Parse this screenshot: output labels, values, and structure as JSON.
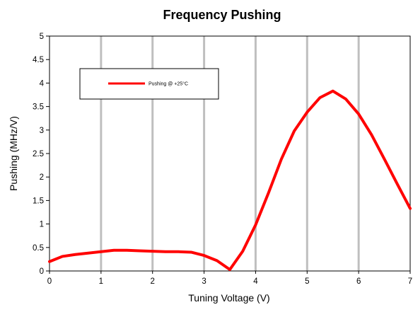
{
  "chart_data": {
    "type": "line",
    "title": "Frequency Pushing",
    "xlabel": "Tuning Voltage (V)",
    "ylabel": "Pushing (MHz/V)",
    "xlim": [
      0,
      7
    ],
    "ylim": [
      0,
      5
    ],
    "x_ticks": [
      "0",
      "1",
      "2",
      "3",
      "4",
      "5",
      "6",
      "7"
    ],
    "y_ticks": [
      "0",
      "0.5",
      "1",
      "1.5",
      "2",
      "2.5",
      "3",
      "3.5",
      "4",
      "4.5",
      "5"
    ],
    "grid": {
      "vertical": true,
      "horizontal": false
    },
    "legend_position": "top-left",
    "series": [
      {
        "name": "Pushing @ +25°C",
        "color": "#ff0000",
        "x": [
          0,
          0.25,
          0.5,
          0.75,
          1,
          1.25,
          1.5,
          1.75,
          2,
          2.25,
          2.5,
          2.75,
          3,
          3.25,
          3.5,
          3.75,
          4,
          4.25,
          4.5,
          4.75,
          5,
          5.25,
          5.5,
          5.75,
          6,
          6.25,
          6.5,
          6.75,
          7
        ],
        "y": [
          0.2,
          0.31,
          0.35,
          0.38,
          0.41,
          0.44,
          0.44,
          0.43,
          0.42,
          0.41,
          0.41,
          0.4,
          0.33,
          0.22,
          0.03,
          0.42,
          0.98,
          1.66,
          2.38,
          2.98,
          3.38,
          3.69,
          3.83,
          3.66,
          3.34,
          2.9,
          2.38,
          1.85,
          1.33
        ]
      }
    ]
  }
}
